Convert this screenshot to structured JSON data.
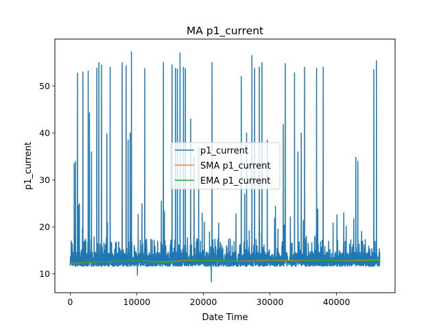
{
  "chart_data": {
    "type": "line",
    "title": "MA p1_current",
    "xlabel": "Date Time",
    "ylabel": "p1_current",
    "xlim": [
      -2300,
      48800
    ],
    "ylim": [
      6.0,
      60.0
    ],
    "xticks": [
      0,
      10000,
      20000,
      30000,
      40000
    ],
    "yticks": [
      10,
      20,
      30,
      40,
      50
    ],
    "x_range": [
      0,
      46500
    ],
    "grid": false,
    "legend_position": "center",
    "series": [
      {
        "name": "p1_current",
        "color": "#1f77b4",
        "baseline": 12.4,
        "band_high": 15.5,
        "band_low": 11.6,
        "spikes": [
          [
            600,
            33.5
          ],
          [
            800,
            34.0
          ],
          [
            1100,
            52.8
          ],
          [
            1900,
            53.0
          ],
          [
            2700,
            53.2
          ],
          [
            2900,
            44.3
          ],
          [
            3200,
            36.0
          ],
          [
            4000,
            53.8
          ],
          [
            4300,
            55.0
          ],
          [
            4700,
            54.5
          ],
          [
            5500,
            39.8
          ],
          [
            6000,
            54.0
          ],
          [
            7800,
            55.0
          ],
          [
            8400,
            54.3
          ],
          [
            8700,
            38.5
          ],
          [
            9000,
            40.0
          ],
          [
            9200,
            57.3
          ],
          [
            10200,
            22.7
          ],
          [
            11200,
            53.7
          ],
          [
            13700,
            25.5
          ],
          [
            14000,
            55.0
          ],
          [
            15300,
            54.5
          ],
          [
            15800,
            53.8
          ],
          [
            16100,
            53.6
          ],
          [
            16500,
            57.0
          ],
          [
            17000,
            54.0
          ],
          [
            17300,
            53.7
          ],
          [
            18100,
            43.0
          ],
          [
            18600,
            35.0
          ],
          [
            19300,
            37.0
          ],
          [
            21300,
            55.0
          ],
          [
            22300,
            20.8
          ],
          [
            25700,
            52.0
          ],
          [
            26200,
            27.0
          ],
          [
            26500,
            40.0
          ],
          [
            27300,
            56.5
          ],
          [
            27700,
            53.8
          ],
          [
            28400,
            54.0
          ],
          [
            28800,
            55.0
          ],
          [
            29600,
            38.5
          ],
          [
            32000,
            41.8
          ],
          [
            32300,
            54.8
          ],
          [
            33700,
            52.8
          ],
          [
            34200,
            36.0
          ],
          [
            34700,
            40.0
          ],
          [
            35200,
            54.0
          ],
          [
            37000,
            53.8
          ],
          [
            38000,
            54.0
          ],
          [
            42900,
            34.8
          ],
          [
            43200,
            34.0
          ],
          [
            45600,
            53.5
          ],
          [
            46000,
            55.4
          ]
        ],
        "dips": [
          [
            10100,
            9.7
          ],
          [
            21200,
            8.3
          ]
        ]
      },
      {
        "name": "SMA p1_current",
        "color": "#ff7f0e",
        "x": [
          0,
          5000,
          10000,
          14000,
          18000,
          22000,
          26000,
          30000,
          34000,
          38000,
          42000,
          46500
        ],
        "values": [
          12.2,
          12.6,
          12.8,
          12.5,
          12.9,
          12.8,
          12.7,
          12.9,
          12.8,
          12.9,
          12.8,
          13.0
        ]
      },
      {
        "name": "EMA p1_current",
        "color": "#2ca02c",
        "x": [
          0,
          5000,
          10000,
          14000,
          18000,
          22000,
          26000,
          30000,
          34000,
          38000,
          42000,
          46500
        ],
        "values": [
          12.1,
          12.6,
          12.8,
          12.4,
          12.8,
          12.9,
          12.6,
          12.8,
          12.7,
          12.9,
          12.7,
          12.9
        ]
      }
    ]
  }
}
